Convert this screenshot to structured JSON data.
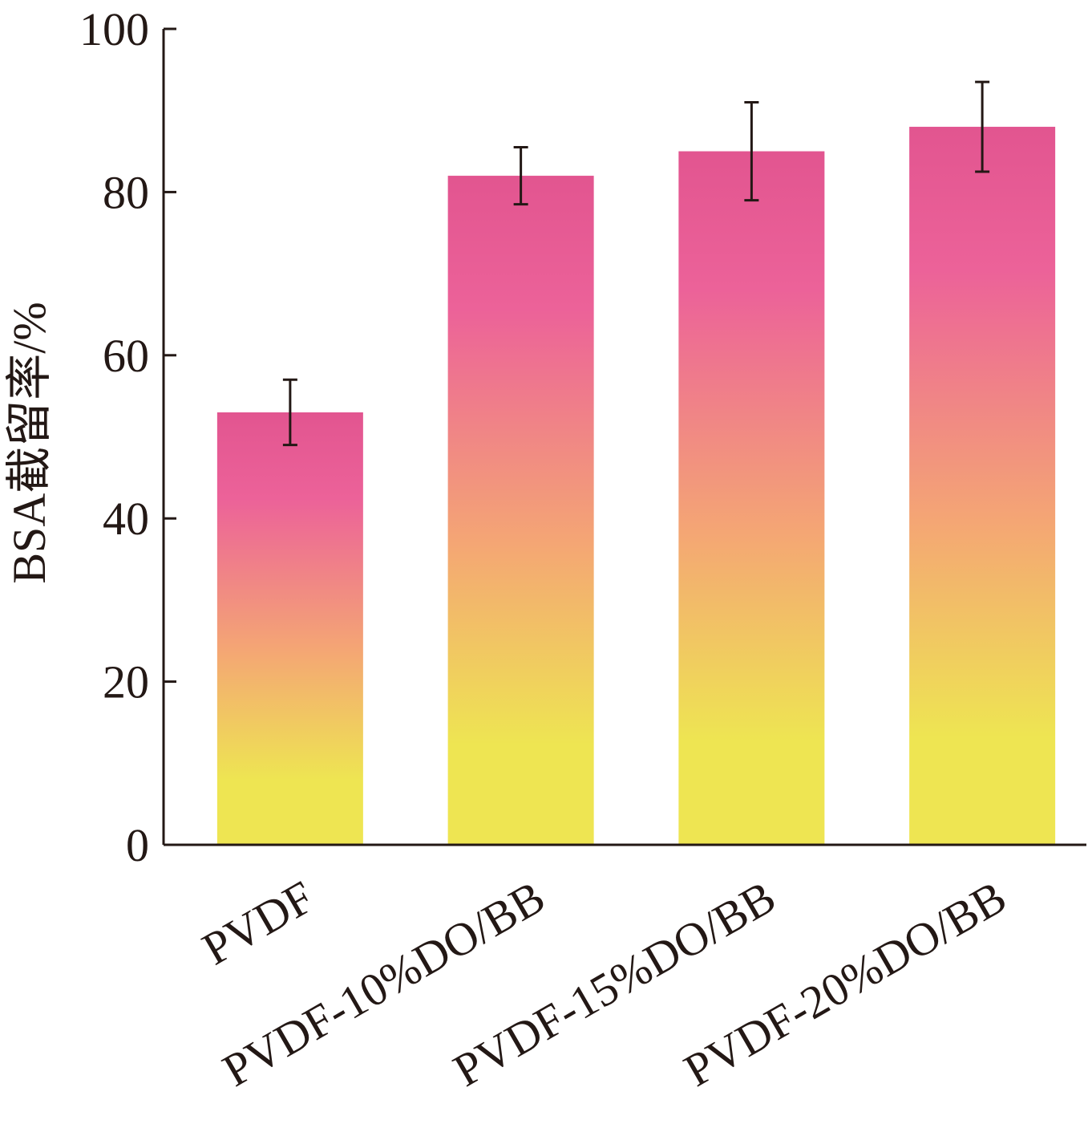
{
  "chart_data": {
    "type": "bar",
    "title": "",
    "xlabel": "",
    "ylabel": "BSA截留率/%",
    "ylim": [
      0,
      100
    ],
    "yticks": [
      0,
      20,
      40,
      60,
      80,
      100
    ],
    "categories": [
      "PVDF",
      "PVDF-10%DO/BB",
      "PVDF-15%DO/BB",
      "PVDF-20%DO/BB"
    ],
    "values": [
      53,
      82,
      85,
      88
    ],
    "error_low": [
      49,
      78.5,
      79,
      82.5
    ],
    "error_high": [
      57,
      85.5,
      91,
      93.5
    ],
    "grid": false,
    "legend": "none",
    "colors": {
      "bar_top": "#e25590",
      "bar_mid_pink": "#ec6299",
      "bar_mid_orange": "#f4a674",
      "bar_bottom": "#eee552",
      "axis": "#231815"
    }
  }
}
